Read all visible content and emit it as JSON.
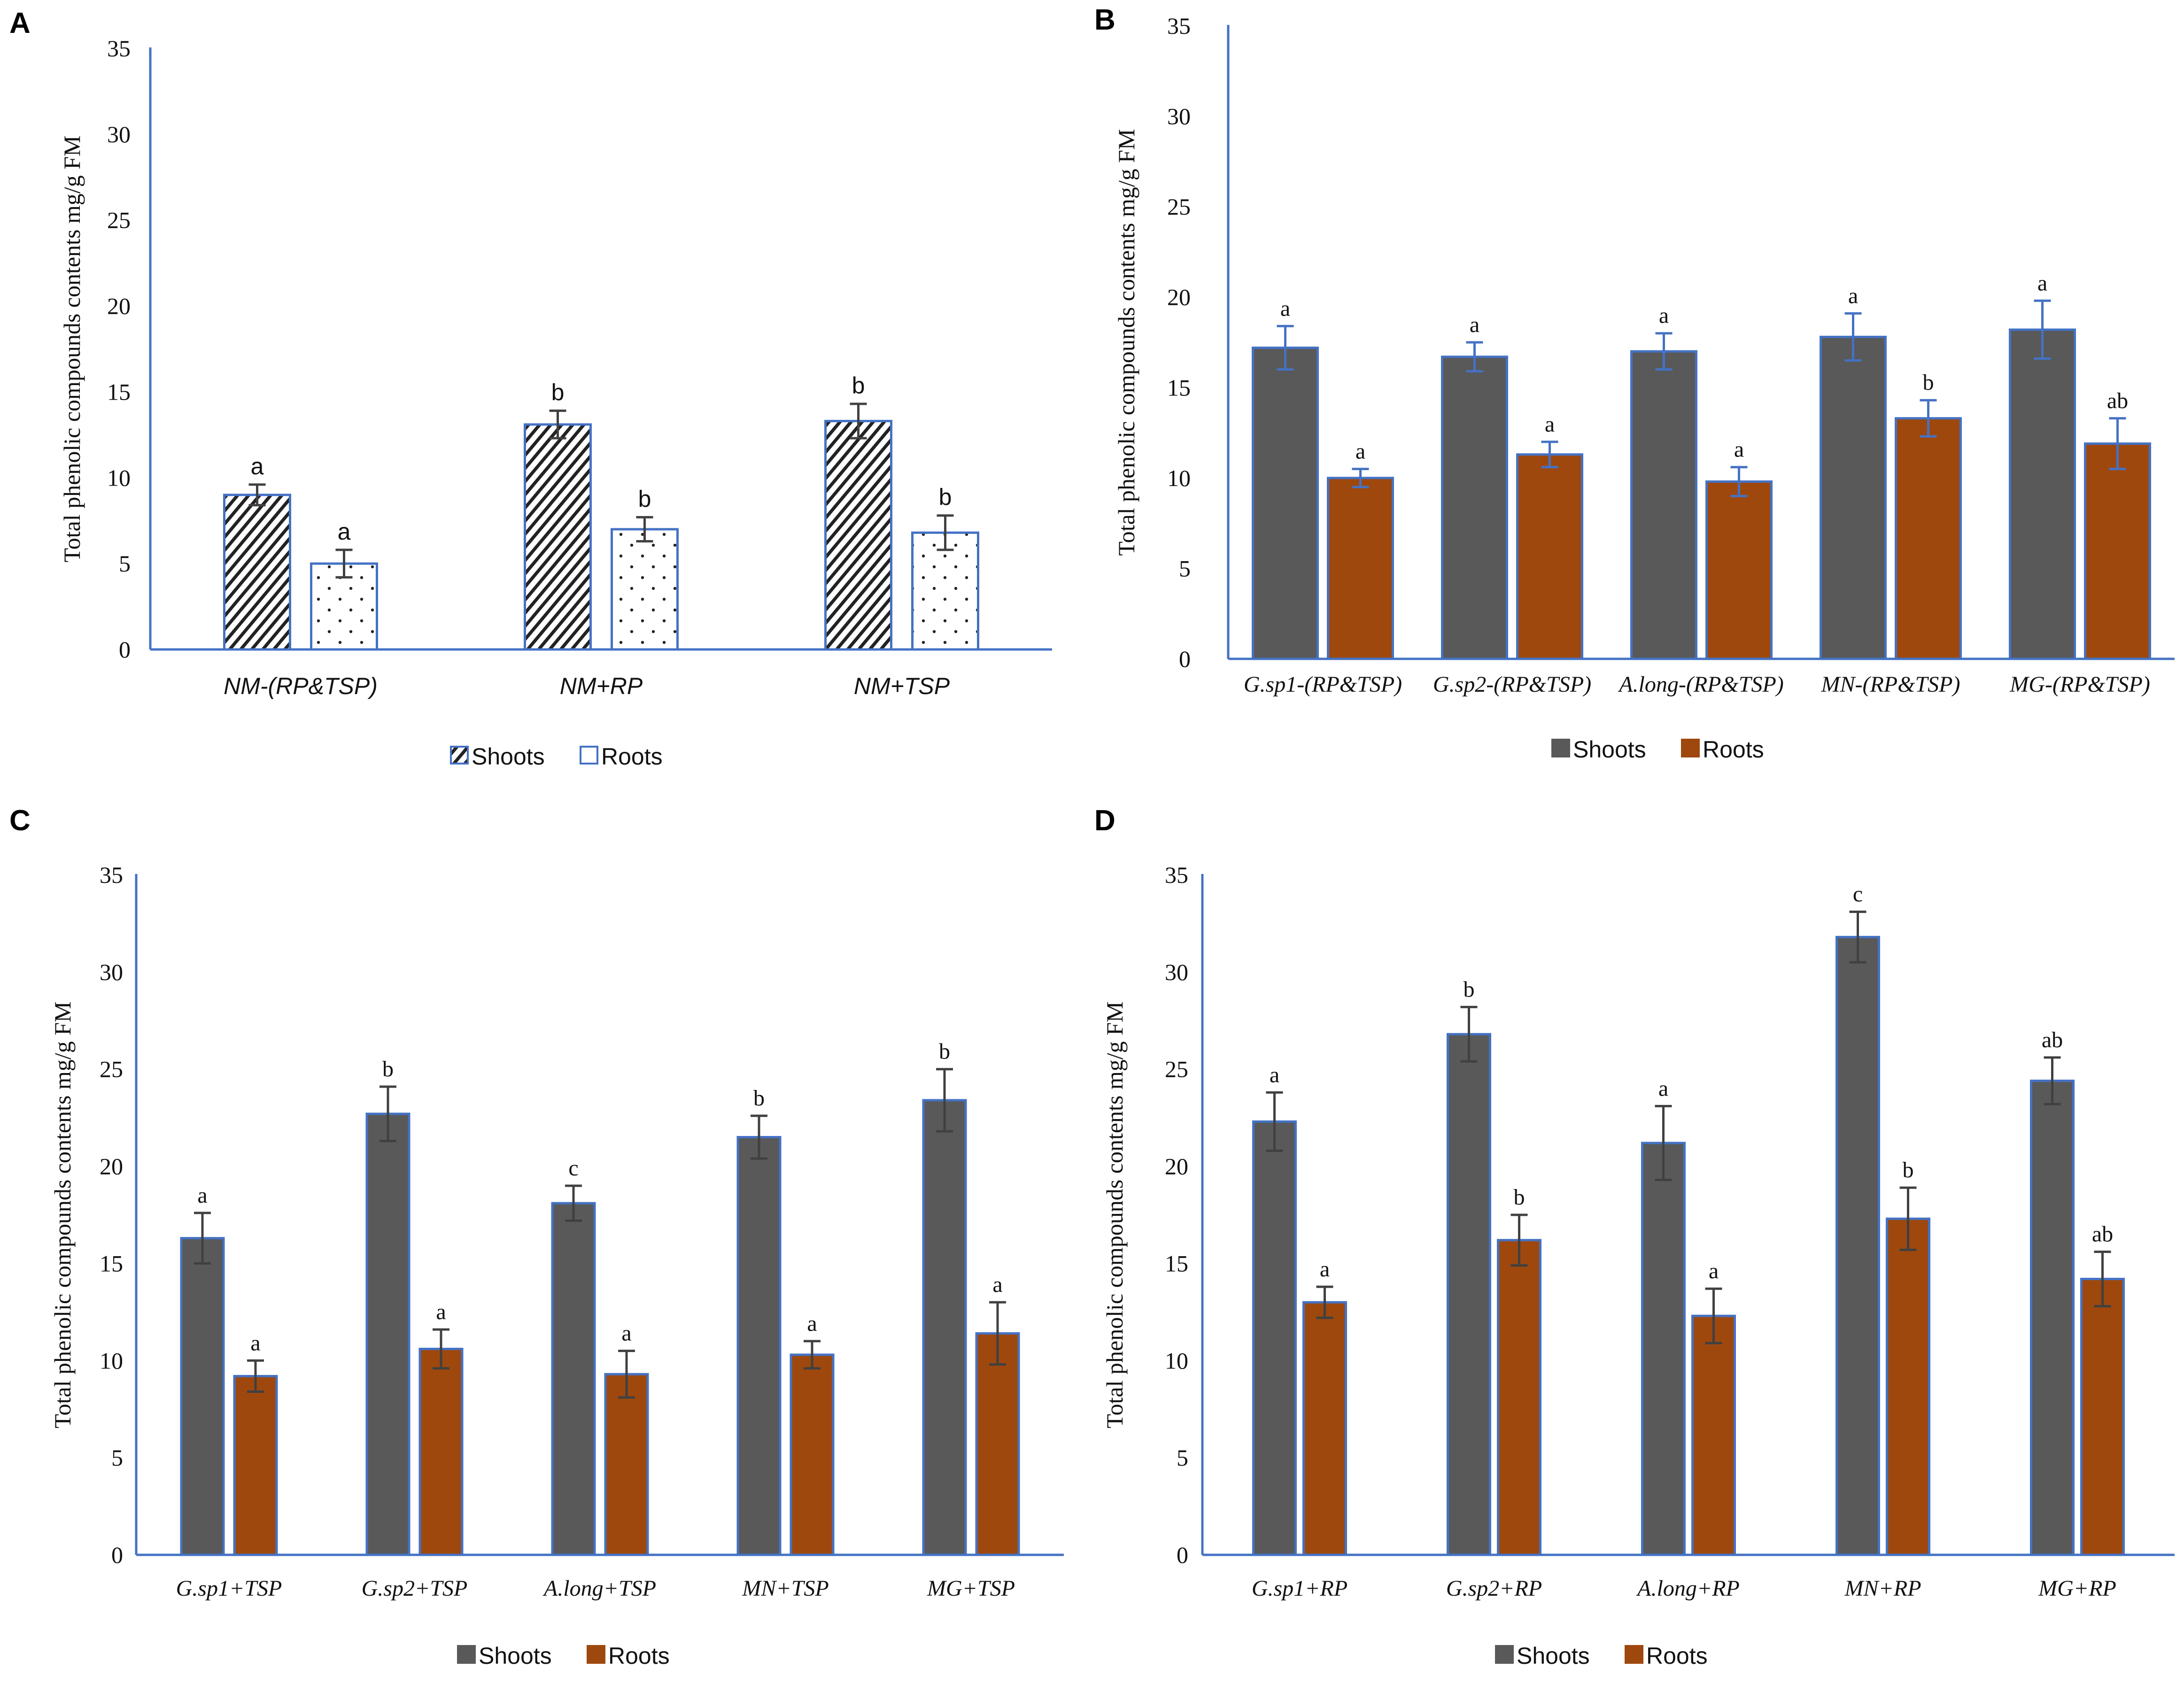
{
  "colors": {
    "axis": "#4472C4",
    "shoots": "#595959",
    "roots": "#9E480E",
    "error_bar": "#404040",
    "panel_b_error_bar": "#4472C4"
  },
  "chart_data": [
    {
      "panel": "A",
      "type": "bar",
      "title": "",
      "ylabel": "Total phenolic compounds contents mg/g FM",
      "xlabel": "",
      "ylim": [
        0,
        35
      ],
      "yticks": [
        "0",
        "5",
        "10",
        "15",
        "20",
        "25",
        "30",
        "35"
      ],
      "categories": [
        "NM-(RP&TSP)",
        "NM+RP",
        "NM+TSP"
      ],
      "series": [
        {
          "name": "Shoots",
          "style": "hatched",
          "values": [
            9.0,
            13.1,
            13.3
          ],
          "errors": [
            0.6,
            0.8,
            1.0
          ],
          "labels": [
            "a",
            "b",
            "b"
          ]
        },
        {
          "name": "Roots",
          "style": "dotted",
          "values": [
            5.0,
            7.0,
            6.8
          ],
          "errors": [
            0.8,
            0.7,
            1.0
          ],
          "labels": [
            "a",
            "b",
            "b"
          ]
        }
      ],
      "legend": [
        "Shoots",
        "Roots"
      ]
    },
    {
      "panel": "B",
      "type": "bar",
      "title": "",
      "ylabel": "Total phenolic compounds contents mg/g FM",
      "xlabel": "",
      "ylim": [
        0,
        35
      ],
      "yticks": [
        "0",
        "5",
        "10",
        "15",
        "20",
        "25",
        "30",
        "35"
      ],
      "categories": [
        "G.sp1-(RP&TSP)",
        "G.sp2-(RP&TSP)",
        "A.long-(RP&TSP)",
        "MN-(RP&TSP)",
        "MG-(RP&TSP)"
      ],
      "series": [
        {
          "name": "Shoots",
          "style": "solid",
          "values": [
            17.2,
            16.7,
            17.0,
            17.8,
            18.2
          ],
          "errors": [
            1.2,
            0.8,
            1.0,
            1.3,
            1.6
          ],
          "labels": [
            "a",
            "a",
            "a",
            "a",
            "a"
          ]
        },
        {
          "name": "Roots",
          "style": "solid",
          "values": [
            10.0,
            11.3,
            9.8,
            13.3,
            11.9
          ],
          "errors": [
            0.5,
            0.7,
            0.8,
            1.0,
            1.4
          ],
          "labels": [
            "a",
            "a",
            "a",
            "b",
            "ab"
          ]
        }
      ],
      "legend": [
        "Shoots",
        "Roots"
      ]
    },
    {
      "panel": "C",
      "type": "bar",
      "title": "",
      "ylabel": "Total phenolic compounds contents mg/g FM",
      "xlabel": "",
      "ylim": [
        0,
        35
      ],
      "yticks": [
        "0",
        "5",
        "10",
        "15",
        "20",
        "25",
        "30",
        "35"
      ],
      "categories": [
        "G.sp1+TSP",
        "G.sp2+TSP",
        "A.long+TSP",
        "MN+TSP",
        "MG+TSP"
      ],
      "series": [
        {
          "name": "Shoots",
          "style": "solid",
          "values": [
            16.3,
            22.7,
            18.1,
            21.5,
            23.4
          ],
          "errors": [
            1.3,
            1.4,
            0.9,
            1.1,
            1.6
          ],
          "labels": [
            "a",
            "b",
            "c",
            "b",
            "b"
          ]
        },
        {
          "name": "Roots",
          "style": "solid",
          "values": [
            9.2,
            10.6,
            9.3,
            10.3,
            11.4
          ],
          "errors": [
            0.8,
            1.0,
            1.2,
            0.7,
            1.6
          ],
          "labels": [
            "a",
            "a",
            "a",
            "a",
            "a"
          ]
        }
      ],
      "legend": [
        "Shoots",
        "Roots"
      ]
    },
    {
      "panel": "D",
      "type": "bar",
      "title": "",
      "ylabel": "Total phenolic compounds contents mg/g FM",
      "xlabel": "",
      "ylim": [
        0,
        35
      ],
      "yticks": [
        "0",
        "5",
        "10",
        "15",
        "20",
        "25",
        "30",
        "35"
      ],
      "categories": [
        "G.sp1+RP",
        "G.sp2+RP",
        "A.long+RP",
        "MN+RP",
        "MG+RP"
      ],
      "series": [
        {
          "name": "Shoots",
          "style": "solid",
          "values": [
            22.3,
            26.8,
            21.2,
            31.8,
            24.4
          ],
          "errors": [
            1.5,
            1.4,
            1.9,
            1.3,
            1.2
          ],
          "labels": [
            "a",
            "b",
            "a",
            "c",
            "ab"
          ]
        },
        {
          "name": "Roots",
          "style": "solid",
          "values": [
            13.0,
            16.2,
            12.3,
            17.3,
            14.2
          ],
          "errors": [
            0.8,
            1.3,
            1.4,
            1.6,
            1.4
          ],
          "labels": [
            "a",
            "b",
            "a",
            "b",
            "ab"
          ]
        }
      ],
      "legend": [
        "Shoots",
        "Roots"
      ]
    }
  ]
}
